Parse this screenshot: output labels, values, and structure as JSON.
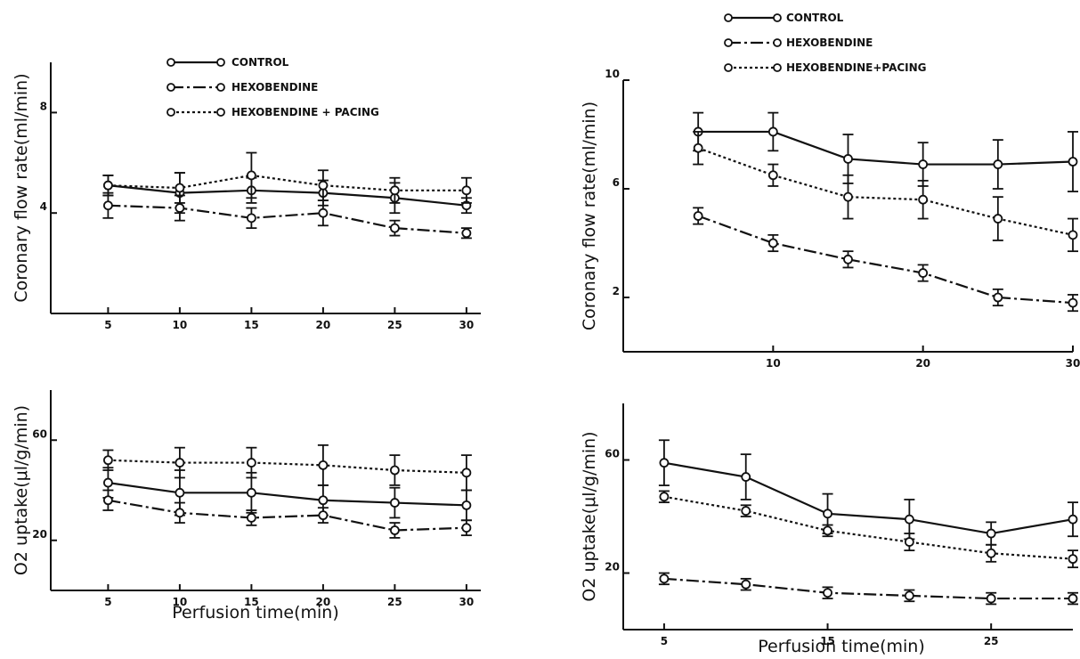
{
  "legend_entries": [
    "CONTROL",
    "HEXOBENDINE",
    "HEXOBENDINE + PACING"
  ],
  "legend_right_last": "HEXOBENDINE+PACING",
  "chart_data": [
    {
      "type": "line",
      "ylabel": "Coronary flow rate(ml/min)",
      "xlabel": "",
      "x_ticks": [
        5,
        10,
        15,
        20,
        25,
        30
      ],
      "y_ticks": [
        4,
        8
      ],
      "xlim": [
        1,
        31
      ],
      "ylim": [
        0,
        10
      ],
      "legend": "top",
      "series": [
        {
          "name": "CONTROL",
          "style": "solid",
          "x": [
            5,
            10,
            15,
            20,
            25,
            30
          ],
          "y": [
            5.1,
            4.8,
            4.9,
            4.8,
            4.6,
            4.3
          ],
          "err": [
            0.4,
            0.8,
            0.5,
            0.5,
            0.6,
            0.3
          ]
        },
        {
          "name": "HEXOBENDINE",
          "style": "dashdot",
          "x": [
            5,
            10,
            15,
            20,
            25,
            30
          ],
          "y": [
            4.3,
            4.2,
            3.8,
            4.0,
            3.4,
            3.2
          ],
          "err": [
            0.5,
            0.5,
            0.4,
            0.5,
            0.3,
            0.2
          ]
        },
        {
          "name": "HEXOBENDINE + PACING",
          "style": "dotted",
          "x": [
            5,
            10,
            15,
            20,
            25,
            30
          ],
          "y": [
            5.1,
            5.0,
            5.5,
            5.1,
            4.9,
            4.9
          ],
          "err": [
            0.4,
            0.6,
            0.9,
            0.6,
            0.5,
            0.5
          ]
        }
      ]
    },
    {
      "type": "line",
      "ylabel": "O2 uptake(μl/g/min)",
      "xlabel": "Perfusion time(min)",
      "x_ticks": [
        5,
        10,
        15,
        20,
        25,
        30
      ],
      "y_ticks": [
        20,
        60
      ],
      "xlim": [
        1,
        31
      ],
      "ylim": [
        0,
        80
      ],
      "legend": "none",
      "series": [
        {
          "name": "CONTROL",
          "style": "solid",
          "x": [
            5,
            10,
            15,
            20,
            25,
            30
          ],
          "y": [
            43,
            39,
            39,
            36,
            35,
            34
          ],
          "err": [
            6,
            9,
            8,
            6,
            6,
            6
          ]
        },
        {
          "name": "HEXOBENDINE",
          "style": "dashdot",
          "x": [
            5,
            10,
            15,
            20,
            25,
            30
          ],
          "y": [
            36,
            31,
            29,
            30,
            24,
            25
          ],
          "err": [
            4,
            4,
            3,
            3,
            3,
            3
          ]
        },
        {
          "name": "HEXOBENDINE + PACING",
          "style": "dotted",
          "x": [
            5,
            10,
            15,
            20,
            25,
            30
          ],
          "y": [
            52,
            51,
            51,
            50,
            48,
            47
          ],
          "err": [
            4,
            6,
            6,
            8,
            6,
            7
          ]
        }
      ]
    },
    {
      "type": "line",
      "ylabel": "Coronary flow rate(ml/min)",
      "xlabel": "",
      "x_ticks": [
        10,
        20,
        30
      ],
      "y_ticks": [
        2,
        6,
        10
      ],
      "xlim": [
        0,
        30
      ],
      "ylim": [
        0,
        10
      ],
      "legend": "top",
      "series": [
        {
          "name": "CONTROL",
          "style": "solid",
          "x": [
            5,
            10,
            15,
            20,
            25,
            30
          ],
          "y": [
            8.1,
            8.1,
            7.1,
            6.9,
            6.9,
            7.0
          ],
          "err": [
            0.7,
            0.7,
            0.9,
            0.8,
            0.9,
            1.1
          ]
        },
        {
          "name": "HEXOBENDINE",
          "style": "dashdot",
          "x": [
            5,
            10,
            15,
            20,
            25,
            30
          ],
          "y": [
            5.0,
            4.0,
            3.4,
            2.9,
            2.0,
            1.8
          ],
          "err": [
            0.3,
            0.3,
            0.3,
            0.3,
            0.3,
            0.3
          ]
        },
        {
          "name": "HEXOBENDINE+PACING",
          "style": "dotted",
          "x": [
            5,
            10,
            15,
            20,
            25,
            30
          ],
          "y": [
            7.5,
            6.5,
            5.7,
            5.6,
            4.9,
            4.3
          ],
          "err": [
            0.6,
            0.4,
            0.8,
            0.7,
            0.8,
            0.6
          ]
        }
      ]
    },
    {
      "type": "line",
      "ylabel": "O2 uptake(μl/g/min)",
      "xlabel": "Perfusion time(min)",
      "x_ticks": [
        5,
        15,
        25
      ],
      "y_ticks": [
        20,
        60
      ],
      "xlim": [
        2.5,
        30
      ],
      "ylim": [
        0,
        80
      ],
      "legend": "none",
      "series": [
        {
          "name": "CONTROL",
          "style": "solid",
          "x": [
            5,
            10,
            15,
            20,
            25,
            30
          ],
          "y": [
            59,
            54,
            41,
            39,
            34,
            39
          ],
          "err": [
            8,
            8,
            7,
            7,
            4,
            6
          ]
        },
        {
          "name": "HEXOBENDINE",
          "style": "dashdot",
          "x": [
            5,
            10,
            15,
            20,
            25,
            30
          ],
          "y": [
            18,
            16,
            13,
            12,
            11,
            11
          ],
          "err": [
            2,
            2,
            2,
            2,
            2,
            2
          ]
        },
        {
          "name": "HEXOBENDINE+PACING",
          "style": "dotted",
          "x": [
            5,
            10,
            15,
            20,
            25,
            30
          ],
          "y": [
            47,
            42,
            35,
            31,
            27,
            25
          ],
          "err": [
            2,
            2,
            2,
            3,
            3,
            3
          ]
        }
      ]
    }
  ]
}
